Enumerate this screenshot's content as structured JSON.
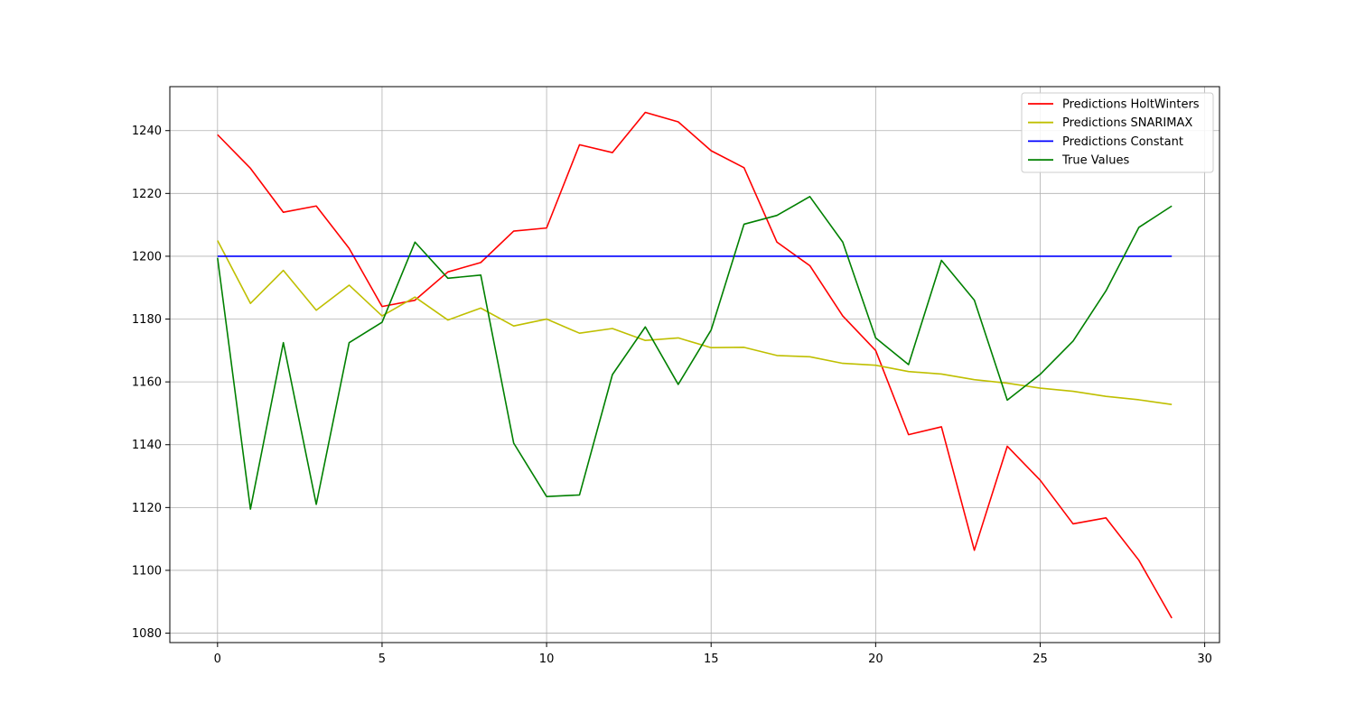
{
  "chart_data": {
    "type": "line",
    "title": "",
    "xlabel": "",
    "ylabel": "",
    "grid": true,
    "legend_position": "top-right",
    "xlim": [
      -1.45,
      30.45
    ],
    "ylim": [
      1077,
      1254
    ],
    "x_ticks": [
      0,
      5,
      10,
      15,
      20,
      25,
      30
    ],
    "y_ticks": [
      1080,
      1100,
      1120,
      1140,
      1160,
      1180,
      1200,
      1220,
      1240
    ],
    "x": [
      0,
      1,
      2,
      3,
      4,
      5,
      6,
      7,
      8,
      9,
      10,
      11,
      12,
      13,
      14,
      15,
      16,
      17,
      18,
      19,
      20,
      21,
      22,
      23,
      24,
      25,
      26,
      27,
      28,
      29
    ],
    "series": [
      {
        "name": "Predictions HoltWinters",
        "color": "#ff0000",
        "values": [
          1238.7,
          1228.0,
          1214.0,
          1216.0,
          1202.5,
          1184.0,
          1186.0,
          1195.0,
          1198.0,
          1208.0,
          1209.0,
          1235.5,
          1233.0,
          1245.8,
          1242.8,
          1233.6,
          1228.2,
          1204.5,
          1197.0,
          1181.0,
          1170.0,
          1143.2,
          1145.7,
          1106.4,
          1139.5,
          1128.7,
          1114.8,
          1116.7,
          1103.2,
          1084.8
        ]
      },
      {
        "name": "Predictions SNARIMAX",
        "color": "#bfbf00",
        "values": [
          1205.0,
          1185.0,
          1195.5,
          1182.8,
          1190.8,
          1181.0,
          1187.0,
          1179.7,
          1183.5,
          1177.8,
          1180.0,
          1175.5,
          1177.0,
          1173.2,
          1174.0,
          1170.9,
          1171.0,
          1168.4,
          1168.0,
          1165.9,
          1165.3,
          1163.3,
          1162.5,
          1160.7,
          1159.6,
          1158.0,
          1157.0,
          1155.4,
          1154.3,
          1152.8
        ]
      },
      {
        "name": "Predictions Constant",
        "color": "#0000ff",
        "values": [
          1200,
          1200,
          1200,
          1200,
          1200,
          1200,
          1200,
          1200,
          1200,
          1200,
          1200,
          1200,
          1200,
          1200,
          1200,
          1200,
          1200,
          1200,
          1200,
          1200,
          1200,
          1200,
          1200,
          1200,
          1200,
          1200,
          1200,
          1200,
          1200,
          1200
        ]
      },
      {
        "name": "True Values",
        "color": "#008000",
        "values": [
          1199.5,
          1119.5,
          1172.5,
          1121.0,
          1172.5,
          1179.0,
          1204.5,
          1193.0,
          1194.0,
          1140.5,
          1123.5,
          1124.0,
          1162.3,
          1177.5,
          1159.2,
          1176.5,
          1210.2,
          1213.0,
          1219.0,
          1204.5,
          1174.0,
          1165.5,
          1198.7,
          1186.0,
          1154.2,
          1162.4,
          1173.0,
          1189.0,
          1209.2,
          1216.0
        ]
      }
    ]
  }
}
